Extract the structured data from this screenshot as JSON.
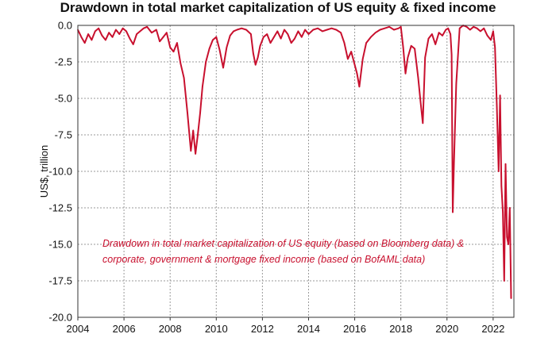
{
  "chart_data": {
    "type": "line",
    "title": "Drawdown in total market capitalization of US equity & fixed income",
    "ylabel": "US$, trillion",
    "xlabel": "",
    "xlim": [
      2004,
      2022.9
    ],
    "ylim": [
      -20,
      0
    ],
    "grid": true,
    "x_ticks": [
      "2004",
      "2006",
      "2008",
      "2010",
      "2012",
      "2014",
      "2016",
      "2018",
      "2020",
      "2022"
    ],
    "y_ticks": [
      "0.0",
      "-2.5",
      "-5.0",
      "-7.5",
      "-10.0",
      "-12.5",
      "-15.0",
      "-17.5",
      "-20.0"
    ],
    "annotation": [
      "Drawdown in total market capitalization of US equity (based on Bloomberg data) &",
      "corporate, government & mortgage fixed income (based on BofAML data)"
    ],
    "colors": {
      "series": "#c8102e",
      "annotation": "#c8102e"
    },
    "series": [
      {
        "x": [
          2004.0,
          2004.15,
          2004.3,
          2004.45,
          2004.6,
          2004.75,
          2004.9,
          2005.05,
          2005.2,
          2005.35,
          2005.5,
          2005.65,
          2005.8,
          2005.95,
          2006.1,
          2006.25,
          2006.4,
          2006.55,
          2006.7,
          2006.85,
          2007.0,
          2007.2,
          2007.4,
          2007.55,
          2007.7,
          2007.85,
          2008.0,
          2008.15,
          2008.3,
          2008.45,
          2008.6,
          2008.75,
          2008.9,
          2009.0,
          2009.1,
          2009.2,
          2009.3,
          2009.4,
          2009.55,
          2009.7,
          2009.85,
          2010.0,
          2010.15,
          2010.3,
          2010.45,
          2010.6,
          2010.75,
          2010.9,
          2011.1,
          2011.3,
          2011.5,
          2011.6,
          2011.7,
          2011.8,
          2011.9,
          2012.05,
          2012.2,
          2012.35,
          2012.5,
          2012.65,
          2012.8,
          2012.95,
          2013.1,
          2013.25,
          2013.4,
          2013.55,
          2013.7,
          2013.85,
          2014.0,
          2014.2,
          2014.4,
          2014.6,
          2014.8,
          2015.0,
          2015.2,
          2015.4,
          2015.55,
          2015.7,
          2015.85,
          2016.0,
          2016.1,
          2016.2,
          2016.35,
          2016.5,
          2016.7,
          2016.9,
          2017.1,
          2017.3,
          2017.5,
          2017.7,
          2017.9,
          2018.0,
          2018.1,
          2018.2,
          2018.3,
          2018.45,
          2018.6,
          2018.75,
          2018.85,
          2018.95,
          2019.05,
          2019.2,
          2019.35,
          2019.5,
          2019.65,
          2019.8,
          2019.95,
          2020.05,
          2020.15,
          2020.2,
          2020.25,
          2020.3,
          2020.4,
          2020.55,
          2020.7,
          2020.85,
          2021.0,
          2021.15,
          2021.3,
          2021.45,
          2021.6,
          2021.75,
          2021.9,
          2022.0,
          2022.08,
          2022.16,
          2022.24,
          2022.3,
          2022.36,
          2022.42,
          2022.48,
          2022.54,
          2022.6,
          2022.66,
          2022.72,
          2022.78
        ],
        "y": [
          -0.3,
          -0.8,
          -1.2,
          -0.6,
          -1.0,
          -0.4,
          -0.2,
          -0.7,
          -1.0,
          -0.5,
          -0.8,
          -0.3,
          -0.6,
          -0.2,
          -0.4,
          -0.9,
          -1.3,
          -0.6,
          -0.4,
          -0.2,
          -0.1,
          -0.5,
          -0.3,
          -1.1,
          -0.8,
          -0.5,
          -1.5,
          -1.8,
          -1.2,
          -2.6,
          -3.6,
          -6.0,
          -8.6,
          -7.2,
          -8.8,
          -7.5,
          -6.0,
          -4.2,
          -2.5,
          -1.6,
          -1.0,
          -0.8,
          -1.7,
          -2.9,
          -1.5,
          -0.7,
          -0.4,
          -0.3,
          -0.2,
          -0.3,
          -0.6,
          -1.9,
          -2.7,
          -2.2,
          -1.4,
          -0.8,
          -0.6,
          -1.2,
          -0.8,
          -0.4,
          -0.9,
          -0.3,
          -0.6,
          -1.2,
          -0.9,
          -0.4,
          -0.8,
          -0.3,
          -0.6,
          -0.3,
          -0.2,
          -0.4,
          -0.3,
          -0.2,
          -0.3,
          -0.5,
          -1.2,
          -2.3,
          -1.8,
          -2.7,
          -3.3,
          -4.2,
          -2.3,
          -1.2,
          -0.8,
          -0.5,
          -0.3,
          -0.2,
          -0.1,
          -0.3,
          -0.2,
          -0.1,
          -1.5,
          -3.3,
          -2.2,
          -1.4,
          -1.6,
          -3.6,
          -5.2,
          -6.7,
          -2.2,
          -0.9,
          -0.6,
          -1.3,
          -0.5,
          -0.7,
          -0.3,
          -0.2,
          -0.6,
          -2.0,
          -12.8,
          -9.5,
          -4.0,
          -0.2,
          0.0,
          -0.1,
          -0.3,
          -0.1,
          -0.2,
          -0.4,
          -0.2,
          -0.7,
          -1.0,
          -0.4,
          -1.5,
          -5.5,
          -10.0,
          -4.8,
          -11.0,
          -12.8,
          -17.5,
          -9.5,
          -14.5,
          -15.0,
          -12.5,
          -18.7
        ]
      }
    ]
  }
}
